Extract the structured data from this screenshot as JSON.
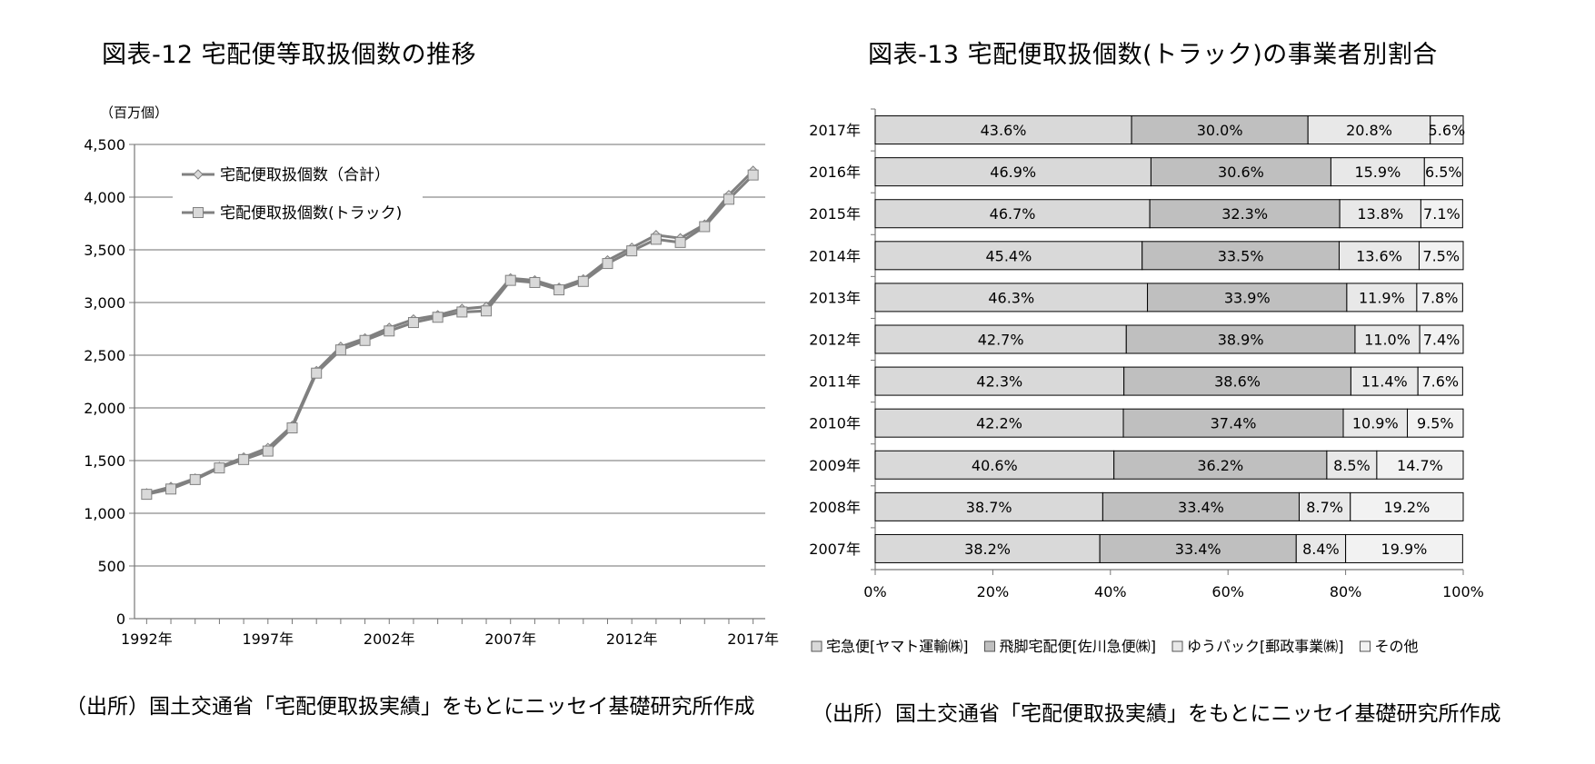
{
  "left_title": "図表-12  宅配便等取扱個数の推移",
  "right_title": "図表-13  宅配便取扱個数(トラック)の事業者別割合",
  "left_source": "（出所）国土交通省「宅配便取扱実績」をもとにニッセイ基礎研究所作成",
  "right_source": "（出所）国土交通省「宅配便取扱実績」をもとにニッセイ基礎研究所作成",
  "chart_data": [
    {
      "type": "line",
      "title": "図表-12  宅配便等取扱個数の推移",
      "unit_label": "（百万個）",
      "x": [
        1992,
        1993,
        1994,
        1995,
        1996,
        1997,
        1998,
        1999,
        2000,
        2001,
        2002,
        2003,
        2004,
        2005,
        2006,
        2007,
        2008,
        2009,
        2010,
        2011,
        2012,
        2013,
        2014,
        2015,
        2016,
        2017
      ],
      "x_tick_labels": [
        "1992年",
        "1997年",
        "2002年",
        "2007年",
        "2012年",
        "2017年"
      ],
      "x_tick_values": [
        1992,
        1997,
        2002,
        2007,
        2012,
        2017
      ],
      "ylim": [
        0,
        4500
      ],
      "y_tick_values": [
        0,
        500,
        1000,
        1500,
        2000,
        2500,
        3000,
        3500,
        4000,
        4500
      ],
      "y_tick_labels": [
        "0",
        "500",
        "1,000",
        "1,500",
        "2,000",
        "2,500",
        "3,000",
        "3,500",
        "4,000",
        "4,500"
      ],
      "grid": "horizontal",
      "legend_position": "top-left",
      "series": [
        {
          "name": "宅配便取扱個数（合計）",
          "marker": "diamond",
          "values": [
            1190,
            1250,
            1330,
            1440,
            1530,
            1620,
            1830,
            2350,
            2580,
            2660,
            2760,
            2840,
            2880,
            2940,
            2960,
            3230,
            3210,
            3140,
            3220,
            3400,
            3520,
            3640,
            3610,
            3740,
            4020,
            4250
          ]
        },
        {
          "name": "宅配便取扱個数(トラック)",
          "marker": "square",
          "values": [
            1180,
            1230,
            1320,
            1430,
            1510,
            1590,
            1810,
            2330,
            2550,
            2640,
            2730,
            2810,
            2860,
            2910,
            2920,
            3210,
            3190,
            3120,
            3200,
            3370,
            3490,
            3600,
            3570,
            3720,
            3980,
            4210
          ]
        }
      ]
    },
    {
      "type": "bar",
      "orientation": "horizontal",
      "stacked": "percent",
      "title": "図表-13  宅配便取扱個数(トラック)の事業者別割合",
      "categories": [
        "2017年",
        "2016年",
        "2015年",
        "2014年",
        "2013年",
        "2012年",
        "2011年",
        "2010年",
        "2009年",
        "2008年",
        "2007年"
      ],
      "xlim": [
        0,
        100
      ],
      "x_tick_labels": [
        "0%",
        "20%",
        "40%",
        "60%",
        "80%",
        "100%"
      ],
      "legend_position": "bottom",
      "series": [
        {
          "name": "宅急便[ヤマト運輸㈱]",
          "color": "#d9d9d9",
          "values": [
            43.6,
            46.9,
            46.7,
            45.4,
            46.3,
            42.7,
            42.3,
            42.2,
            40.6,
            38.7,
            38.2
          ]
        },
        {
          "name": "飛脚宅配便[佐川急便㈱]",
          "color": "#bfbfbf",
          "values": [
            30.0,
            30.6,
            32.3,
            33.5,
            33.9,
            38.9,
            38.6,
            37.4,
            36.2,
            33.4,
            33.4
          ]
        },
        {
          "name": "ゆうパック[郵政事業㈱]",
          "color": "#e8e8e8",
          "values": [
            20.8,
            15.9,
            13.8,
            13.6,
            11.9,
            11.0,
            11.4,
            10.9,
            8.5,
            8.7,
            8.4
          ]
        },
        {
          "name": "その他",
          "color": "#f2f2f2",
          "values": [
            5.6,
            6.5,
            7.1,
            7.5,
            7.8,
            7.4,
            7.6,
            9.5,
            14.7,
            19.2,
            19.9
          ]
        }
      ]
    }
  ]
}
